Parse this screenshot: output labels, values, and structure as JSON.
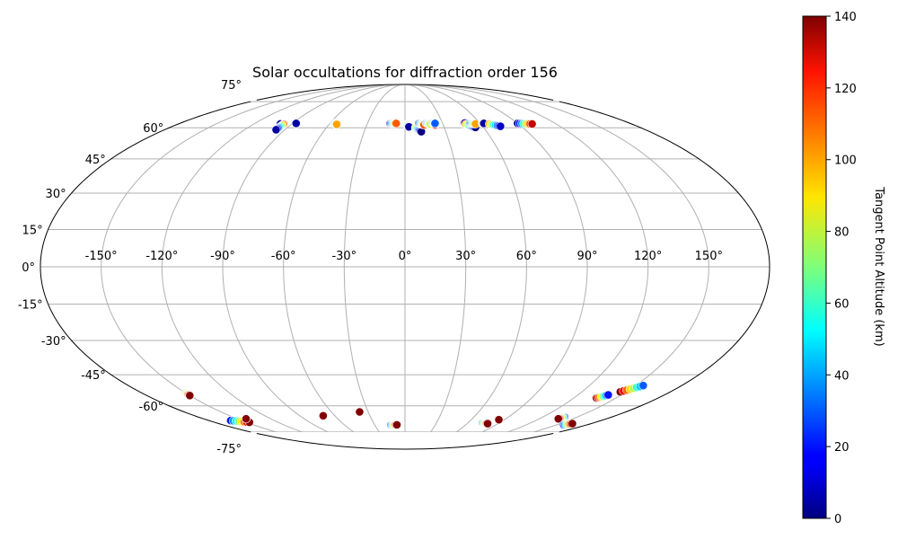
{
  "chart_data": {
    "type": "scatter",
    "projection": "mollweide",
    "title": "Solar occultations for diffraction order 156",
    "longitude_ticks": [
      "-150°",
      "-120°",
      "-90°",
      "-60°",
      "-30°",
      "0°",
      "30°",
      "60°",
      "90°",
      "120°",
      "150°"
    ],
    "longitude_tick_values": [
      -150,
      -120,
      -90,
      -60,
      -30,
      0,
      30,
      60,
      90,
      120,
      150
    ],
    "latitude_ticks": [
      "75°",
      "60°",
      "45°",
      "30°",
      "15°",
      "0°",
      "-15°",
      "-30°",
      "-45°",
      "-60°",
      "-75°"
    ],
    "latitude_tick_values": [
      75,
      60,
      45,
      30,
      15,
      0,
      -15,
      -30,
      -45,
      -60,
      -75
    ],
    "lat_display_range": [
      -75,
      75
    ],
    "grid": true,
    "colorbar": {
      "label": "Tangent Point Altitude (km)",
      "min": 0,
      "max": 140,
      "ticks": [
        0,
        20,
        40,
        60,
        80,
        100,
        120,
        140
      ],
      "tick_labels": [
        "0",
        "20",
        "40",
        "60",
        "80",
        "100",
        "120",
        "140"
      ],
      "colormap": "jet"
    },
    "tracks": [
      {
        "lon_start": -101,
        "lat_start": 62.3,
        "lon_end": -99,
        "lat_end": 62.0,
        "alt_start": 0,
        "alt_end": 5
      },
      {
        "lon_start": -96,
        "lat_start": 61.8,
        "lon_end": -96.5,
        "lat_end": 59.0,
        "alt_start": 110,
        "alt_end": 5
      },
      {
        "lon_start": -87,
        "lat_start": 62.3,
        "lon_end": -87,
        "lat_end": 62.3,
        "alt_start": 5,
        "alt_end": 5
      },
      {
        "lon_start": -57,
        "lat_start": 62.3,
        "lon_end": -54,
        "lat_end": 61.8,
        "alt_start": 0,
        "alt_end": 100
      },
      {
        "lon_start": -12,
        "lat_start": 62.3,
        "lon_end": -7,
        "lat_end": 62.3,
        "alt_start": 0,
        "alt_end": 110
      },
      {
        "lon_start": 1,
        "lat_start": 61.8,
        "lon_end": 3,
        "lat_end": 60.5,
        "alt_start": 100,
        "alt_end": 5
      },
      {
        "lon_start": 8,
        "lat_start": 60.0,
        "lon_end": 12,
        "lat_end": 58.0,
        "alt_start": 90,
        "alt_end": 0
      },
      {
        "lon_start": 11,
        "lat_start": 62.3,
        "lon_end": 15,
        "lat_end": 61.5,
        "alt_start": 5,
        "alt_end": 110
      },
      {
        "lon_start": 17,
        "lat_start": 62.5,
        "lon_end": 20,
        "lat_end": 62.0,
        "alt_start": 5,
        "alt_end": 80
      },
      {
        "lon_start": 22,
        "lat_start": 62.5,
        "lon_end": 24,
        "lat_end": 61.5,
        "alt_start": 5,
        "alt_end": 120
      },
      {
        "lon_start": 26,
        "lat_start": 62.3,
        "lon_end": 24,
        "lat_end": 62.3,
        "alt_start": 100,
        "alt_end": 30
      },
      {
        "lon_start": 46,
        "lat_start": 62.3,
        "lon_end": 48,
        "lat_end": 62.5,
        "alt_start": 0,
        "alt_end": 5
      },
      {
        "lon_start": 48,
        "lat_start": 61.8,
        "lon_end": 54,
        "lat_end": 60.2,
        "alt_start": 100,
        "alt_end": 0
      },
      {
        "lon_start": 52,
        "lat_start": 62.3,
        "lon_end": 56,
        "lat_end": 62.0,
        "alt_start": 20,
        "alt_end": 100
      },
      {
        "lon_start": 62,
        "lat_start": 62.5,
        "lon_end": 63,
        "lat_end": 62.3,
        "alt_start": 5,
        "alt_end": 5
      },
      {
        "lon_start": 67,
        "lat_start": 62.0,
        "lon_end": 74,
        "lat_end": 60.8,
        "alt_start": 100,
        "alt_end": 10
      },
      {
        "lon_start": 90,
        "lat_start": 62.3,
        "lon_end": 101,
        "lat_end": 62.0,
        "alt_start": 0,
        "alt_end": 130
      },
      {
        "lon_start": -150,
        "lat_start": -53.5,
        "lon_end": -150,
        "lat_end": -54.8,
        "alt_start": 60,
        "alt_end": 140
      },
      {
        "lon_start": -160,
        "lat_start": -68.0,
        "lon_end": -147,
        "lat_end": -69.0,
        "alt_start": 20,
        "alt_end": 140
      },
      {
        "lon_start": -142,
        "lat_start": -67.0,
        "lon_end": -142,
        "lat_end": -67.0,
        "alt_start": 140,
        "alt_end": 140
      },
      {
        "lon_start": -70,
        "lat_start": -65.3,
        "lon_end": -70,
        "lat_end": -65.3,
        "alt_start": 140,
        "alt_end": 140
      },
      {
        "lon_start": -37,
        "lat_start": -63.2,
        "lon_end": -37,
        "lat_end": -63.2,
        "alt_start": 140,
        "alt_end": 140
      },
      {
        "lon_start": -14,
        "lat_start": -70.5,
        "lon_end": -8,
        "lat_end": -70.5,
        "alt_start": 20,
        "alt_end": 140
      },
      {
        "lon_start": 74,
        "lat_start": -69.3,
        "lon_end": 80,
        "lat_end": -69.8,
        "alt_start": 30,
        "alt_end": 140
      },
      {
        "lon_start": 85,
        "lat_start": -67.5,
        "lon_end": 85,
        "lat_end": -67.5,
        "alt_start": 140,
        "alt_end": 140
      },
      {
        "lon_start": 139,
        "lat_start": -66.0,
        "lon_end": 137,
        "lat_end": -67.0,
        "alt_start": 20,
        "alt_end": 140
      },
      {
        "lon_start": 157,
        "lat_start": -70.5,
        "lon_end": 162,
        "lat_end": -69.8,
        "alt_start": 20,
        "alt_end": 140
      },
      {
        "lon_start": 136,
        "lat_start": -56.0,
        "lon_end": 141,
        "lat_end": -54.5,
        "alt_start": 140,
        "alt_end": 20
      },
      {
        "lon_start": 146,
        "lat_start": -53.0,
        "lon_end": 155,
        "lat_end": -50.0,
        "alt_start": 140,
        "alt_end": 30
      }
    ]
  }
}
